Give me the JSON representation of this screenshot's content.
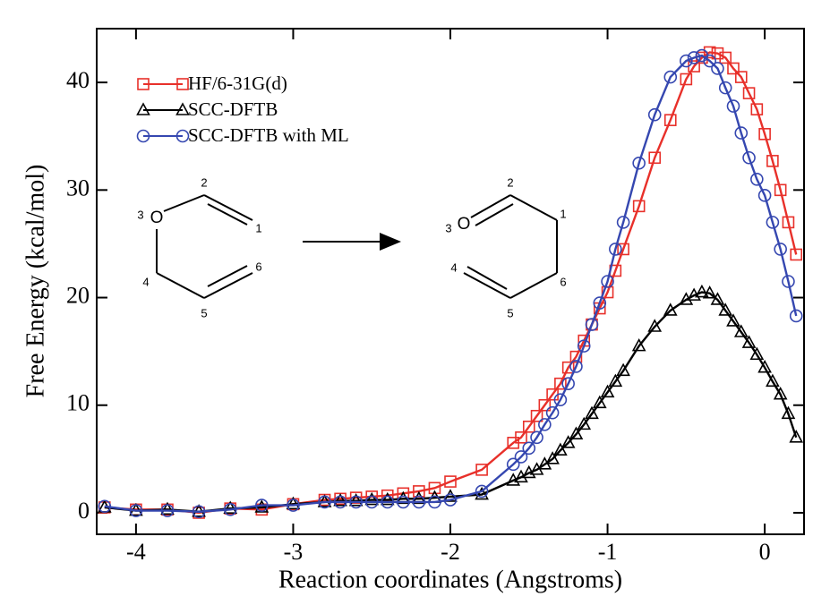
{
  "chart_data": {
    "type": "line",
    "x_label": "Reaction coordinates (Angstroms)",
    "y_label": "Free Energy (kcal/mol)",
    "xlim": [
      -4.25,
      0.25
    ],
    "ylim": [
      -2,
      45
    ],
    "xticks": [
      -4,
      -3,
      -2,
      -1,
      0
    ],
    "yticks": [
      0,
      10,
      20,
      30,
      40
    ],
    "legend": "upper left",
    "reactant_labels": [
      "O",
      "1",
      "2",
      "3",
      "4",
      "5",
      "6"
    ],
    "product_labels": [
      "O",
      "1",
      "2",
      "3",
      "4",
      "5",
      "6"
    ],
    "x": [
      -4.2,
      -4.0,
      -3.8,
      -3.6,
      -3.4,
      -3.2,
      -3.0,
      -2.8,
      -2.7,
      -2.6,
      -2.5,
      -2.4,
      -2.3,
      -2.2,
      -2.1,
      -2.0,
      -1.8,
      -1.6,
      -1.55,
      -1.5,
      -1.45,
      -1.4,
      -1.35,
      -1.3,
      -1.25,
      -1.2,
      -1.15,
      -1.1,
      -1.05,
      -1.0,
      -0.95,
      -0.9,
      -0.8,
      -0.7,
      -0.6,
      -0.5,
      -0.45,
      -0.4,
      -0.35,
      -0.3,
      -0.25,
      -0.2,
      -0.15,
      -0.1,
      -0.05,
      0.0,
      0.05,
      0.1,
      0.15,
      0.2
    ],
    "series": [
      {
        "name": "HF/6-31G(d)",
        "color": "#e8302a",
        "marker": "square",
        "values": [
          0.5,
          0.3,
          0.3,
          0.0,
          0.4,
          0.3,
          0.8,
          1.2,
          1.3,
          1.4,
          1.5,
          1.6,
          1.8,
          2.0,
          2.3,
          2.9,
          4.0,
          6.5,
          7.0,
          8.0,
          9.0,
          10.0,
          11.0,
          12.0,
          13.5,
          14.5,
          16.0,
          17.5,
          19.0,
          20.5,
          22.5,
          24.5,
          28.5,
          33.0,
          36.5,
          40.3,
          41.5,
          42.3,
          42.8,
          42.7,
          42.3,
          41.3,
          40.5,
          39.0,
          37.5,
          35.2,
          32.7,
          30.0,
          27.0,
          24.0
        ]
      },
      {
        "name": "SCC-DFTB",
        "color": "#000000",
        "marker": "triangle",
        "values": [
          0.5,
          0.2,
          0.3,
          0.1,
          0.4,
          0.5,
          0.8,
          1.0,
          1.1,
          1.1,
          1.2,
          1.2,
          1.3,
          1.3,
          1.4,
          1.5,
          1.7,
          3.0,
          3.3,
          3.7,
          4.0,
          4.5,
          5.0,
          5.8,
          6.5,
          7.3,
          8.2,
          9.2,
          10.2,
          11.2,
          12.2,
          13.2,
          15.5,
          17.3,
          18.8,
          19.8,
          20.2,
          20.5,
          20.4,
          19.8,
          18.8,
          17.8,
          16.8,
          15.8,
          14.7,
          13.5,
          12.2,
          11.0,
          9.2,
          7.0
        ]
      },
      {
        "name": "SCC-DFTB with ML",
        "color": "#3547b0",
        "marker": "circle",
        "values": [
          0.6,
          0.2,
          0.2,
          0.1,
          0.3,
          0.7,
          0.7,
          1.0,
          1.0,
          1.0,
          1.0,
          1.0,
          1.0,
          1.0,
          1.0,
          1.2,
          2.0,
          4.5,
          5.2,
          6.0,
          7.0,
          8.2,
          9.3,
          10.5,
          12.0,
          13.6,
          15.5,
          17.5,
          19.5,
          21.5,
          24.5,
          27.0,
          32.5,
          37.0,
          40.5,
          42.0,
          42.3,
          42.5,
          42.0,
          41.3,
          39.5,
          37.8,
          35.3,
          33.0,
          31.0,
          29.5,
          27.0,
          24.5,
          21.5,
          18.3
        ]
      }
    ]
  }
}
